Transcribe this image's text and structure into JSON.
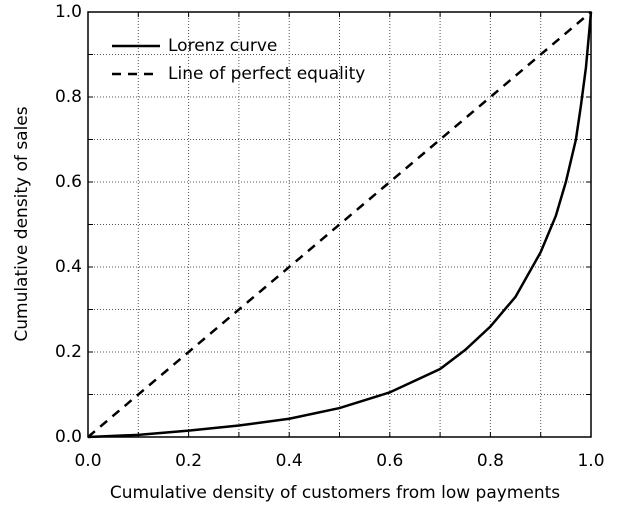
{
  "chart_data": {
    "type": "line",
    "xlabel": "Cumulative density of customers from low payments",
    "ylabel": "Cumulative density of sales",
    "xlim": [
      0,
      1
    ],
    "ylim": [
      0,
      1
    ],
    "xticks": [
      {
        "value": 0,
        "label": "0.0"
      },
      0.2,
      0.4,
      0.6,
      0.8,
      {
        "value": 1,
        "label": "1.0"
      }
    ],
    "yticks": [
      {
        "value": 0,
        "label": "0.0"
      },
      0.2,
      0.4,
      0.6,
      0.8,
      {
        "value": 1,
        "label": "1.0"
      }
    ],
    "xminorticks": [
      0.1,
      0.3,
      0.5,
      0.7,
      0.9
    ],
    "yminorticks": [
      0.1,
      0.3,
      0.5,
      0.7,
      0.9
    ],
    "grid": true,
    "legend": "upper left",
    "series": [
      {
        "name": "Lorenz curve",
        "color": "#000000",
        "style": "solid",
        "x": [
          0,
          0.1,
          0.2,
          0.3,
          0.4,
          0.5,
          0.6,
          0.7,
          0.75,
          0.8,
          0.85,
          0.9,
          0.93,
          0.95,
          0.97,
          0.98,
          0.99,
          1
        ],
        "values": [
          0,
          0.005,
          0.015,
          0.027,
          0.043,
          0.068,
          0.105,
          0.16,
          0.205,
          0.26,
          0.33,
          0.435,
          0.52,
          0.6,
          0.7,
          0.78,
          0.87,
          1
        ]
      },
      {
        "name": "Line of perfect equality",
        "color": "#000000",
        "style": "dashed",
        "x": [
          0,
          1
        ],
        "values": [
          0,
          1
        ]
      }
    ]
  }
}
